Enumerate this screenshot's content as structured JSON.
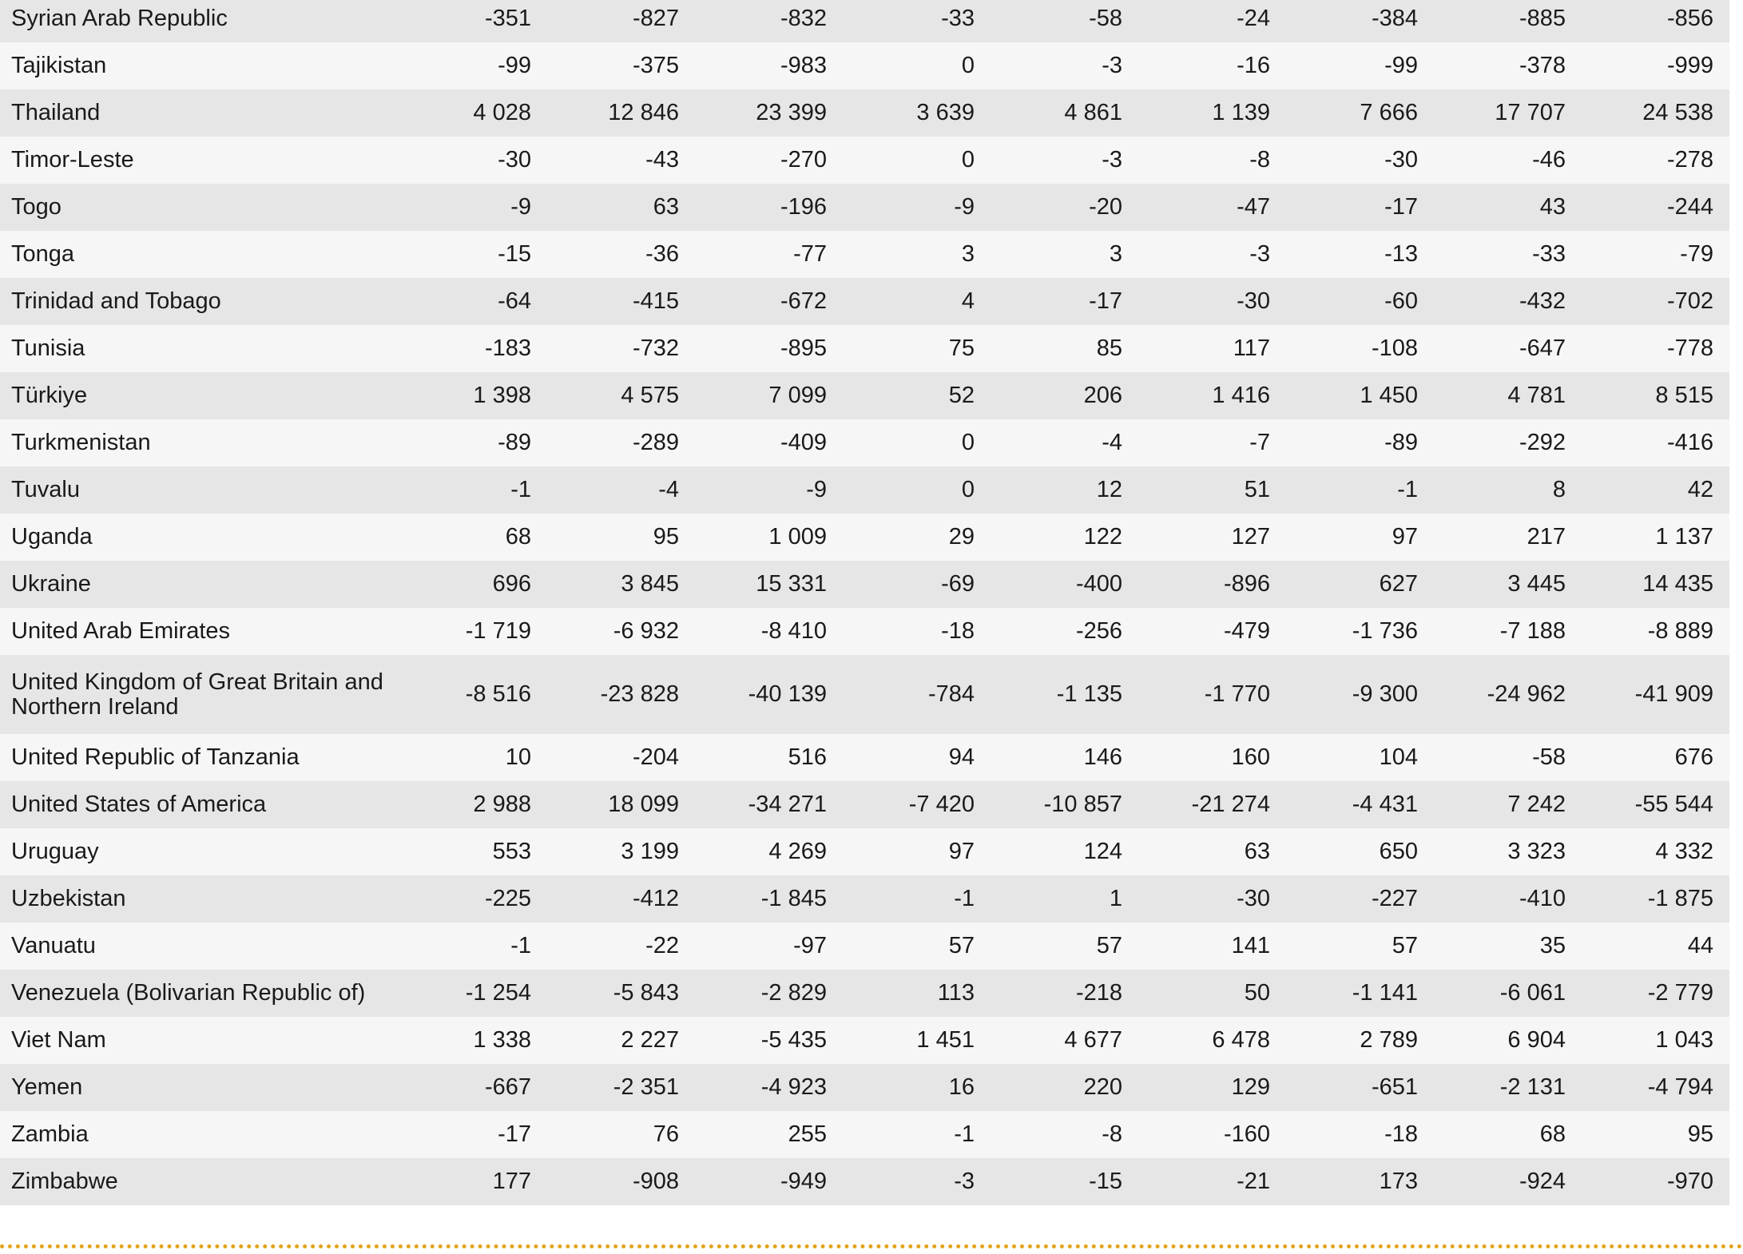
{
  "table": {
    "rows": [
      [
        "Syrian Arab Republic",
        "-351",
        "-827",
        "-832",
        "-33",
        "-58",
        "-24",
        "-384",
        "-885",
        "-856"
      ],
      [
        "Tajikistan",
        "-99",
        "-375",
        "-983",
        "0",
        "-3",
        "-16",
        "-99",
        "-378",
        "-999"
      ],
      [
        "Thailand",
        "4 028",
        "12 846",
        "23 399",
        "3 639",
        "4 861",
        "1 139",
        "7 666",
        "17 707",
        "24 538"
      ],
      [
        "Timor-Leste",
        "-30",
        "-43",
        "-270",
        "0",
        "-3",
        "-8",
        "-30",
        "-46",
        "-278"
      ],
      [
        "Togo",
        "-9",
        "63",
        "-196",
        "-9",
        "-20",
        "-47",
        "-17",
        "43",
        "-244"
      ],
      [
        "Tonga",
        "-15",
        "-36",
        "-77",
        "3",
        "3",
        "-3",
        "-13",
        "-33",
        "-79"
      ],
      [
        "Trinidad and Tobago",
        "-64",
        "-415",
        "-672",
        "4",
        "-17",
        "-30",
        "-60",
        "-432",
        "-702"
      ],
      [
        "Tunisia",
        "-183",
        "-732",
        "-895",
        "75",
        "85",
        "117",
        "-108",
        "-647",
        "-778"
      ],
      [
        "Türkiye",
        "1 398",
        "4 575",
        "7 099",
        "52",
        "206",
        "1 416",
        "1 450",
        "4 781",
        "8 515"
      ],
      [
        "Turkmenistan",
        "-89",
        "-289",
        "-409",
        "0",
        "-4",
        "-7",
        "-89",
        "-292",
        "-416"
      ],
      [
        "Tuvalu",
        "-1",
        "-4",
        "-9",
        "0",
        "12",
        "51",
        "-1",
        "8",
        "42"
      ],
      [
        "Uganda",
        "68",
        "95",
        "1 009",
        "29",
        "122",
        "127",
        "97",
        "217",
        "1 137"
      ],
      [
        "Ukraine",
        "696",
        "3 845",
        "15 331",
        "-69",
        "-400",
        "-896",
        "627",
        "3 445",
        "14 435"
      ],
      [
        "United Arab Emirates",
        "-1 719",
        "-6 932",
        "-8 410",
        "-18",
        "-256",
        "-479",
        "-1 736",
        "-7 188",
        "-8 889"
      ],
      [
        "United Kingdom of Great Britain and Northern Ireland",
        "-8 516",
        "-23 828",
        "-40 139",
        "-784",
        "-1 135",
        "-1 770",
        "-9 300",
        "-24 962",
        "-41 909"
      ],
      [
        "United Republic of Tanzania",
        "10",
        "-204",
        "516",
        "94",
        "146",
        "160",
        "104",
        "-58",
        "676"
      ],
      [
        "United States of America",
        "2 988",
        "18 099",
        "-34 271",
        "-7 420",
        "-10 857",
        "-21 274",
        "-4 431",
        "7 242",
        "-55 544"
      ],
      [
        "Uruguay",
        "553",
        "3 199",
        "4 269",
        "97",
        "124",
        "63",
        "650",
        "3 323",
        "4 332"
      ],
      [
        "Uzbekistan",
        "-225",
        "-412",
        "-1 845",
        "-1",
        "1",
        "-30",
        "-227",
        "-410",
        "-1 875"
      ],
      [
        "Vanuatu",
        "-1",
        "-22",
        "-97",
        "57",
        "57",
        "141",
        "57",
        "35",
        "44"
      ],
      [
        "Venezuela (Bolivarian Republic of)",
        "-1 254",
        "-5 843",
        "-2 829",
        "113",
        "-218",
        "50",
        "-1 141",
        "-6 061",
        "-2 779"
      ],
      [
        "Viet Nam",
        "1 338",
        "2 227",
        "-5 435",
        "1 451",
        "4 677",
        "6 478",
        "2 789",
        "6 904",
        "1 043"
      ],
      [
        "Yemen",
        "-667",
        "-2 351",
        "-4 923",
        "16",
        "220",
        "129",
        "-651",
        "-2 131",
        "-4 794"
      ],
      [
        "Zambia",
        "-17",
        "76",
        "255",
        "-1",
        "-8",
        "-160",
        "-18",
        "68",
        "95"
      ],
      [
        "Zimbabwe",
        "177",
        "-908",
        "-949",
        "-3",
        "-15",
        "-21",
        "173",
        "-924",
        "-970"
      ]
    ]
  }
}
